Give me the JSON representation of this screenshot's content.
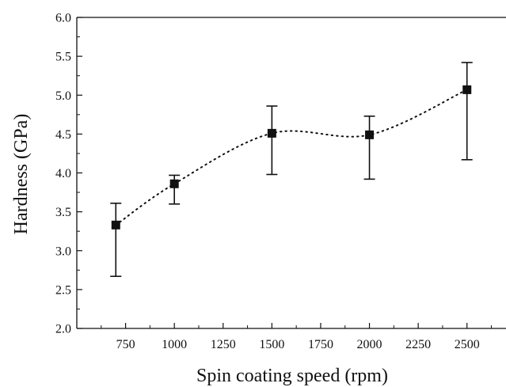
{
  "chart_data": {
    "type": "scatter",
    "xlabel": "Spin coating speed (rpm)",
    "ylabel": "Hardness (GPa)",
    "xlim": [
      500,
      2700
    ],
    "ylim": [
      2.0,
      6.0
    ],
    "x_ticks": [
      750,
      1000,
      1250,
      1500,
      1750,
      2000,
      2250,
      2500
    ],
    "x_tick_labels": [
      "750",
      "1000",
      "1250",
      "1500",
      "1750",
      "2000",
      "2250",
      "2500"
    ],
    "y_ticks": [
      2.0,
      2.5,
      3.0,
      3.5,
      4.0,
      4.5,
      5.0,
      5.5,
      6.0
    ],
    "y_tick_labels": [
      "2.0",
      "2.5",
      "3.0",
      "3.5",
      "4.0",
      "4.5",
      "5.0",
      "5.5",
      "6.0"
    ],
    "grid": false,
    "series": [
      {
        "marker": "square",
        "line_style": "dotted",
        "color": "#111111",
        "x": [
          700,
          1000,
          1500,
          2000,
          2500
        ],
        "y": [
          3.33,
          3.86,
          4.51,
          4.49,
          5.07
        ],
        "y_err_low": [
          2.67,
          3.6,
          3.98,
          3.92,
          4.17
        ],
        "y_err_high": [
          3.61,
          3.97,
          4.86,
          4.73,
          5.42
        ]
      }
    ]
  }
}
